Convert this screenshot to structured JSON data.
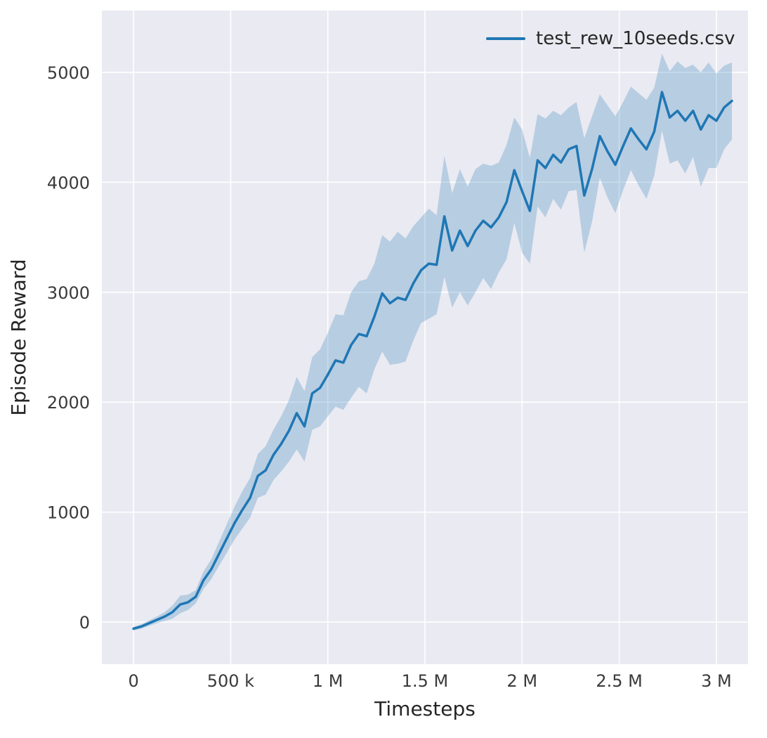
{
  "figure": {
    "background": "#ffffff",
    "plot_background": "#eaeaf2",
    "grid_color": "#ffffff",
    "line_color": "#1f77b4",
    "band_opacity": 0.25,
    "text_color": "#262626",
    "tick_color": "#3a3a3a"
  },
  "chart_data": {
    "type": "line",
    "title": "",
    "xlabel": "Timesteps",
    "ylabel": "Episode Reward",
    "grid": true,
    "legend_position": "upper right",
    "legend": [
      {
        "label": "test_rew_10seeds.csv",
        "color": "#1f77b4"
      }
    ],
    "xlim": [
      -163000,
      3163000
    ],
    "ylim": [
      -383,
      5562
    ],
    "x_ticks": [
      {
        "value": 0,
        "label": "0"
      },
      {
        "value": 500000,
        "label": "500 k"
      },
      {
        "value": 1000000,
        "label": "1 M"
      },
      {
        "value": 1500000,
        "label": "1.5 M"
      },
      {
        "value": 2000000,
        "label": "2 M"
      },
      {
        "value": 2500000,
        "label": "2.5 M"
      },
      {
        "value": 3000000,
        "label": "3 M"
      }
    ],
    "y_ticks": [
      {
        "value": 0,
        "label": "0"
      },
      {
        "value": 1000,
        "label": "1000"
      },
      {
        "value": 2000,
        "label": "2000"
      },
      {
        "value": 3000,
        "label": "3000"
      },
      {
        "value": 4000,
        "label": "4000"
      },
      {
        "value": 5000,
        "label": "5000"
      }
    ],
    "band_definition": "shaded region spans mean - spread to mean + spread (across 10 seeds)",
    "series": [
      {
        "name": "test_rew_10seeds.csv",
        "x": [
          0,
          40000,
          80000,
          120000,
          160000,
          200000,
          240000,
          280000,
          320000,
          360000,
          400000,
          440000,
          480000,
          520000,
          560000,
          600000,
          640000,
          680000,
          720000,
          760000,
          800000,
          840000,
          880000,
          920000,
          960000,
          1000000,
          1040000,
          1080000,
          1120000,
          1160000,
          1200000,
          1240000,
          1280000,
          1320000,
          1360000,
          1400000,
          1440000,
          1480000,
          1520000,
          1560000,
          1600000,
          1640000,
          1680000,
          1720000,
          1760000,
          1800000,
          1840000,
          1880000,
          1920000,
          1960000,
          2000000,
          2040000,
          2080000,
          2120000,
          2160000,
          2200000,
          2240000,
          2280000,
          2320000,
          2360000,
          2400000,
          2440000,
          2480000,
          2520000,
          2560000,
          2600000,
          2640000,
          2680000,
          2720000,
          2760000,
          2800000,
          2840000,
          2880000,
          2920000,
          2960000,
          3000000,
          3040000,
          3080000
        ],
        "mean": [
          -60,
          -40,
          -10,
          20,
          50,
          90,
          160,
          180,
          230,
          380,
          480,
          620,
          760,
          900,
          1020,
          1130,
          1330,
          1380,
          1520,
          1620,
          1740,
          1900,
          1780,
          2080,
          2130,
          2250,
          2380,
          2360,
          2520,
          2620,
          2600,
          2780,
          2990,
          2900,
          2950,
          2930,
          3080,
          3200,
          3260,
          3250,
          3690,
          3380,
          3560,
          3420,
          3560,
          3650,
          3590,
          3680,
          3820,
          4110,
          3920,
          3740,
          4200,
          4130,
          4250,
          4180,
          4300,
          4330,
          3880,
          4120,
          4420,
          4280,
          4160,
          4330,
          4490,
          4390,
          4300,
          4460,
          4820,
          4590,
          4650,
          4560,
          4650,
          4480,
          4610,
          4560,
          4680,
          4740
        ],
        "spread": [
          15,
          20,
          25,
          30,
          40,
          60,
          80,
          70,
          60,
          80,
          90,
          110,
          130,
          150,
          170,
          180,
          200,
          220,
          230,
          250,
          280,
          330,
          320,
          330,
          350,
          380,
          420,
          430,
          480,
          480,
          520,
          480,
          530,
          560,
          600,
          560,
          520,
          480,
          500,
          450,
          550,
          520,
          560,
          540,
          560,
          520,
          560,
          500,
          520,
          480,
          560,
          480,
          420,
          450,
          400,
          430,
          380,
          400,
          520,
          480,
          380,
          420,
          440,
          400,
          380,
          420,
          450,
          400,
          350,
          420,
          450,
          480,
          420,
          520,
          480,
          430,
          380,
          350
        ]
      }
    ]
  }
}
